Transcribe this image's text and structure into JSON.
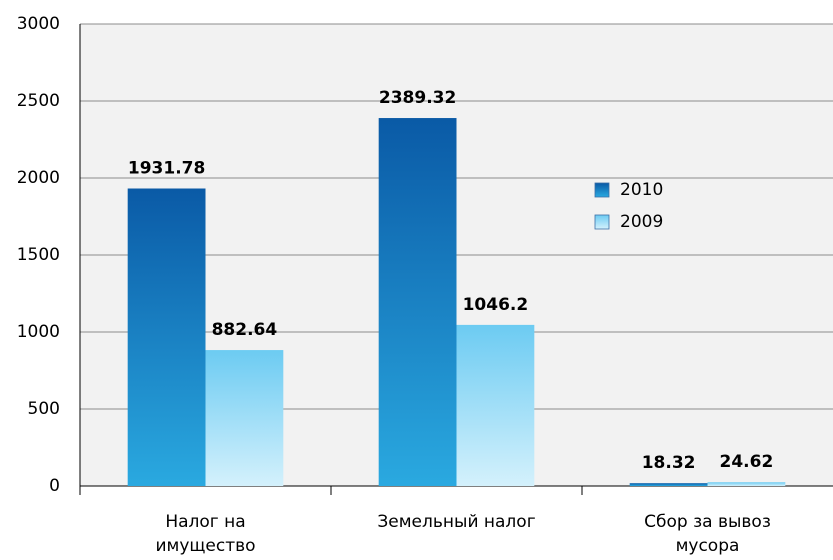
{
  "chart_data": {
    "type": "bar",
    "categories": [
      "Налог на имущество",
      "Земельный налог",
      "Сбор за вывоз мусора"
    ],
    "series": [
      {
        "name": "2010",
        "color": "#0a5aa6",
        "values": [
          1931.78,
          2389.32,
          18.32
        ]
      },
      {
        "name": "2009",
        "color": "#6ccbf2",
        "values": [
          882.64,
          1046.2,
          24.62
        ]
      }
    ],
    "ylim": [
      0,
      3000
    ],
    "yticks": [
      0,
      500,
      1000,
      1500,
      2000,
      2500,
      3000
    ],
    "grid": true
  }
}
